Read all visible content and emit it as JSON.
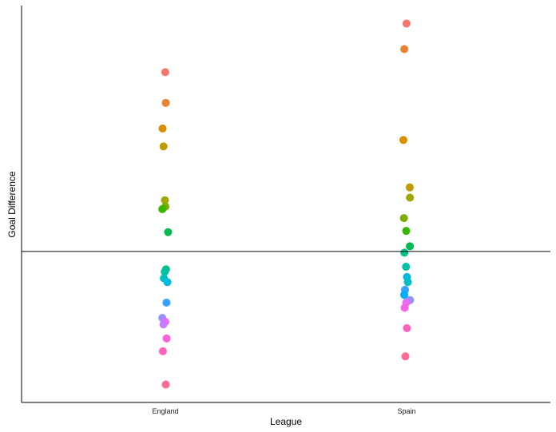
{
  "chart_data": {
    "type": "scatter",
    "subtype": "jitter strip plot",
    "title": "",
    "xlabel": "League",
    "ylabel": "Goal Difference",
    "categories": [
      "England",
      "Spain"
    ],
    "ylim": [
      -59,
      96
    ],
    "y_tick_labels_shown": false,
    "grid": false,
    "reference_line_y": 0,
    "series": [
      {
        "category": "England",
        "points": [
          {
            "y": 70,
            "color": "#F8766D"
          },
          {
            "y": 58,
            "color": "#EA8331"
          },
          {
            "y": 48,
            "color": "#D89000"
          },
          {
            "y": 41,
            "color": "#C09B00"
          },
          {
            "y": 20,
            "color": "#A3A500"
          },
          {
            "y": 17.5,
            "color": "#7CAE00"
          },
          {
            "y": 16.5,
            "color": "#39B600"
          },
          {
            "y": 7.5,
            "color": "#00BB4E"
          },
          {
            "y": -7,
            "color": "#00BF7D"
          },
          {
            "y": -8,
            "color": "#00C1A3"
          },
          {
            "y": -10.5,
            "color": "#00BFC4"
          },
          {
            "y": -12,
            "color": "#00BAE0"
          },
          {
            "y": -20,
            "color": "#35A2FF"
          },
          {
            "y": -26,
            "color": "#9590FF"
          },
          {
            "y": -27.5,
            "color": "#E76BF3"
          },
          {
            "y": -28.5,
            "color": "#C77CFF"
          },
          {
            "y": -34,
            "color": "#FA62DB"
          },
          {
            "y": -39,
            "color": "#FF62BC"
          },
          {
            "y": -52,
            "color": "#FF6C91"
          }
        ]
      },
      {
        "category": "Spain",
        "points": [
          {
            "y": 89,
            "color": "#F8766D"
          },
          {
            "y": 79,
            "color": "#EA8331"
          },
          {
            "y": 43.5,
            "color": "#D89000"
          },
          {
            "y": 25,
            "color": "#C09B00"
          },
          {
            "y": 21,
            "color": "#A3A500"
          },
          {
            "y": 13,
            "color": "#7CAE00"
          },
          {
            "y": 8,
            "color": "#39B600"
          },
          {
            "y": 2,
            "color": "#00BB4E"
          },
          {
            "y": -0.5,
            "color": "#00C08B"
          },
          {
            "y": -6,
            "color": "#00C1A3"
          },
          {
            "y": -10,
            "color": "#00BAE0"
          },
          {
            "y": -12,
            "color": "#00BFC4"
          },
          {
            "y": -15,
            "color": "#35A2FF"
          },
          {
            "y": -17,
            "color": "#00B0F6"
          },
          {
            "y": -19,
            "color": "#9590FF"
          },
          {
            "y": -20,
            "color": "#E76BF3"
          },
          {
            "y": -22,
            "color": "#F564E3"
          },
          {
            "y": -30,
            "color": "#FF62BC"
          },
          {
            "y": -41,
            "color": "#FF6C91"
          }
        ]
      }
    ]
  }
}
